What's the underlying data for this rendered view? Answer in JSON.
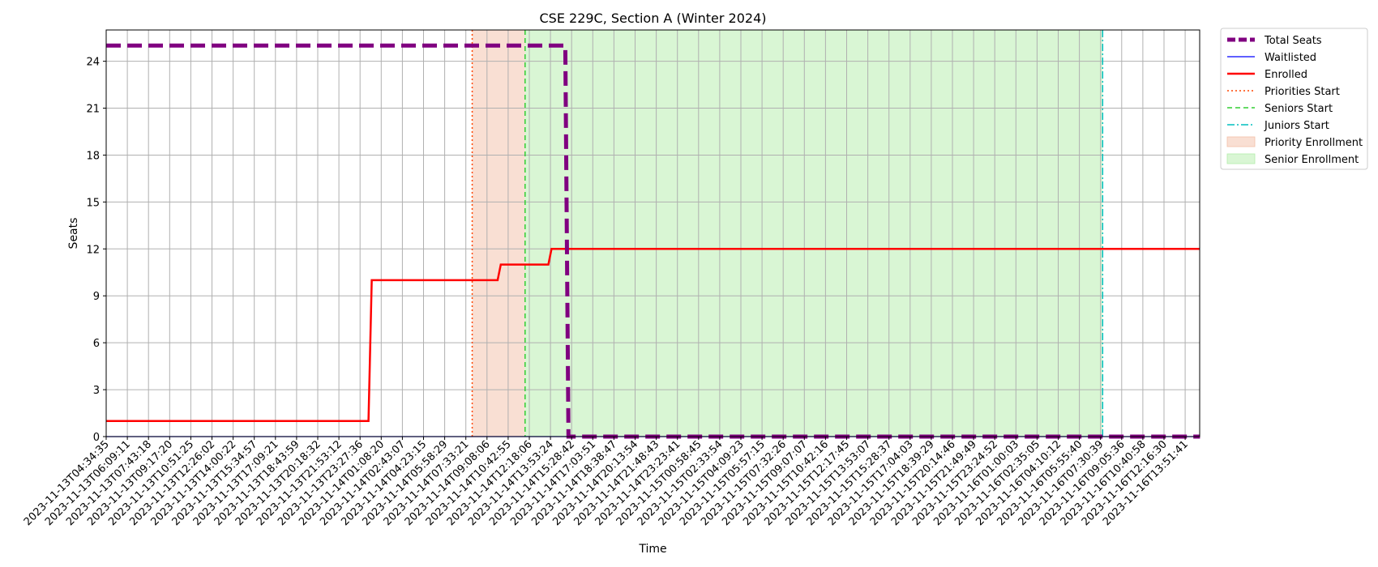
{
  "chart_data": {
    "type": "line",
    "title": "CSE 229C, Section A (Winter 2024)",
    "xlabel": "Time",
    "ylabel": "Seats",
    "ylim": [
      0,
      26
    ],
    "yticks": [
      0,
      3,
      6,
      9,
      12,
      15,
      18,
      21,
      24
    ],
    "grid": true,
    "legend_position": "outside-top-right",
    "x_tick_labels": [
      "2023-11-13T04:34:35",
      "2023-11-13T06:09:11",
      "2023-11-13T07:43:18",
      "2023-11-13T09:17:20",
      "2023-11-13T10:51:25",
      "2023-11-13T12:26:02",
      "2023-11-13T14:00:22",
      "2023-11-13T15:34:57",
      "2023-11-13T17:09:21",
      "2023-11-13T18:43:59",
      "2023-11-13T20:18:32",
      "2023-11-13T21:53:12",
      "2023-11-13T23:27:36",
      "2023-11-14T01:08:20",
      "2023-11-14T02:43:07",
      "2023-11-14T04:23:15",
      "2023-11-14T05:58:29",
      "2023-11-14T07:33:21",
      "2023-11-14T09:08:06",
      "2023-11-14T10:42:55",
      "2023-11-14T12:18:06",
      "2023-11-14T13:53:24",
      "2023-11-14T15:28:42",
      "2023-11-14T17:03:51",
      "2023-11-14T18:38:47",
      "2023-11-14T20:13:54",
      "2023-11-14T21:48:43",
      "2023-11-14T23:23:41",
      "2023-11-15T00:58:45",
      "2023-11-15T02:33:54",
      "2023-11-15T04:09:23",
      "2023-11-15T05:57:15",
      "2023-11-15T07:32:26",
      "2023-11-15T09:07:07",
      "2023-11-15T10:42:16",
      "2023-11-15T12:17:45",
      "2023-11-15T13:53:07",
      "2023-11-15T15:28:37",
      "2023-11-15T17:04:03",
      "2023-11-15T18:39:29",
      "2023-11-15T20:14:46",
      "2023-11-15T21:49:49",
      "2023-11-15T23:24:52",
      "2023-11-16T01:00:03",
      "2023-11-16T02:35:05",
      "2023-11-16T04:10:12",
      "2023-11-16T05:55:40",
      "2023-11-16T07:30:39",
      "2023-11-16T09:05:36",
      "2023-11-16T10:40:58",
      "2023-11-16T12:16:30",
      "2023-11-16T13:51:41"
    ],
    "x_range": [
      0,
      51.7
    ],
    "series": [
      {
        "name": "Total Seats",
        "color": "#800080",
        "style": "dashed-thick",
        "x": [
          0,
          21.7,
          21.85,
          51.7
        ],
        "values": [
          25,
          25,
          0,
          0
        ]
      },
      {
        "name": "Waitlisted",
        "color": "#0000ff",
        "style": "solid-thin",
        "x": [
          0,
          51.7
        ],
        "values": [
          0,
          0
        ]
      },
      {
        "name": "Enrolled",
        "color": "#ff0000",
        "style": "solid",
        "x": [
          0,
          12.4,
          12.55,
          18.5,
          18.65,
          20.9,
          21.05,
          51.7
        ],
        "values": [
          1,
          1,
          10,
          10,
          11,
          11,
          12,
          12
        ]
      }
    ],
    "markers": [
      {
        "name": "Priorities Start",
        "x": 17.3,
        "color": "#ff4500",
        "style": "dotted"
      },
      {
        "name": "Seniors Start",
        "x": 19.8,
        "color": "#32cd32",
        "style": "dashed"
      },
      {
        "name": "Juniors Start",
        "x": 47.1,
        "color": "#00bfbf",
        "style": "dashdot"
      }
    ],
    "spans": [
      {
        "name": "Priority Enrollment",
        "x0": 17.3,
        "x1": 19.8,
        "color": "#f4c0a8"
      },
      {
        "name": "Senior Enrollment",
        "x0": 19.8,
        "x1": 47.1,
        "color": "#b4edaa"
      }
    ]
  }
}
